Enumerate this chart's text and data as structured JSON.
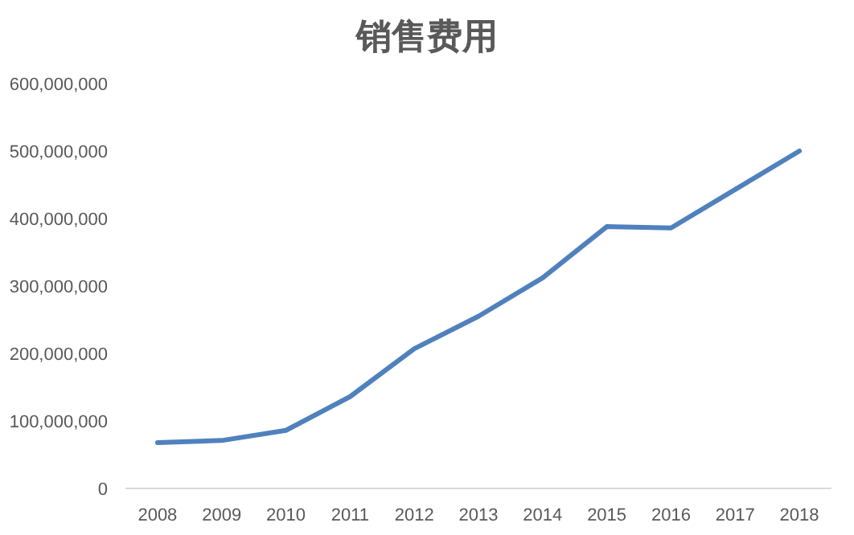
{
  "chart_data": {
    "type": "line",
    "title": "销售费用",
    "categories": [
      "2008",
      "2009",
      "2010",
      "2011",
      "2012",
      "2013",
      "2014",
      "2015",
      "2016",
      "2017",
      "2018"
    ],
    "series": [
      {
        "color": "#4f81bd",
        "values": [
          68000000,
          71000000,
          86000000,
          136000000,
          207000000,
          255000000,
          312000000,
          388000000,
          386000000,
          443000000,
          500000000
        ]
      }
    ],
    "ylim": [
      0,
      600000000
    ],
    "yticks": [
      {
        "value": 0,
        "label": "0"
      },
      {
        "value": 100000000,
        "label": "100,000,000"
      },
      {
        "value": 200000000,
        "label": "200,000,000"
      },
      {
        "value": 300000000,
        "label": "300,000,000"
      },
      {
        "value": 400000000,
        "label": "400,000,000"
      },
      {
        "value": 500000000,
        "label": "500,000,000"
      },
      {
        "value": 600000000,
        "label": "600,000,000"
      }
    ],
    "grid": false,
    "marker": "none",
    "line_style": "solid"
  }
}
